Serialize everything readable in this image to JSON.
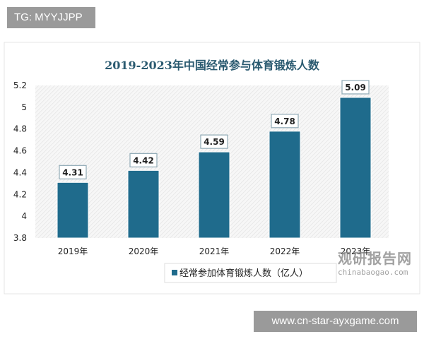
{
  "header_badge": "TG: MYYJJPP",
  "footer_badge": "www.cn-star-ayxgame.com",
  "watermark": {
    "cn": "观研报告网",
    "en": "chinabaogao.com"
  },
  "colors": {
    "bar": "#1f6b8c",
    "title": "#2a5a70",
    "badge": "#9a9a9a"
  },
  "chart_data": {
    "type": "bar",
    "title": "2019-2023年中国经常参与体育锻炼人数",
    "categories": [
      "2019年",
      "2020年",
      "2021年",
      "2022年",
      "2023年"
    ],
    "series": [
      {
        "name": "经常参加体育锻炼人数（亿人）",
        "values": [
          4.31,
          4.42,
          4.59,
          4.78,
          5.09
        ]
      }
    ],
    "data_labels": [
      "4.31",
      "4.42",
      "4.59",
      "4.78",
      "5.09"
    ],
    "ylim": [
      3.8,
      5.2
    ],
    "yticks": [
      "3.8",
      "4",
      "4.2",
      "4.4",
      "4.6",
      "4.8",
      "5",
      "5.2"
    ],
    "xlabel": "",
    "ylabel": "",
    "grid": false,
    "legend": "bottom"
  }
}
